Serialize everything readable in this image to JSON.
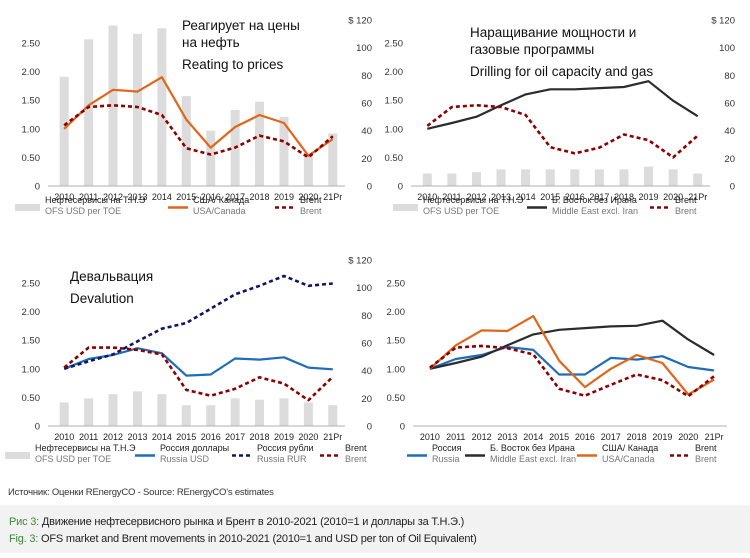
{
  "colors": {
    "bars": "#dcdcdc",
    "usa_canada": "#e0661a",
    "brent": "#8b0000",
    "middle_east": "#2b2b2b",
    "russia_usd": "#1f6cb8",
    "russia_rur": "#0f1560",
    "axis": "#b0b0b0",
    "caption_label": "#3a8a3a"
  },
  "chart_data": [
    {
      "type": "bar+line",
      "title": [
        "Реагирует на цены",
        "на нефть"
      ],
      "subtitle": "Reating to prices",
      "categories": [
        "2010",
        "2011",
        "2012",
        "2013",
        "2014",
        "2015",
        "2016",
        "2017",
        "2018",
        "2019",
        "2020",
        "21Pr"
      ],
      "left_axis": {
        "ticks": [
          "0",
          "0.50",
          "1.00",
          "1.50",
          "2.00",
          "2.50"
        ],
        "ylim": [
          0,
          2.9
        ]
      },
      "right_axis": {
        "ticks": [
          "0",
          "20",
          "40",
          "60",
          "80",
          "100",
          "$ 120"
        ],
        "ylim": [
          0,
          120
        ]
      },
      "bars": {
        "name": "Нефтесервисы на Т.Н.Э",
        "name_en": "OFS USD per TOE",
        "axis": "right",
        "values": [
          79,
          106,
          116,
          110,
          114,
          65,
          40,
          55,
          61,
          50,
          23,
          38
        ]
      },
      "series": [
        {
          "name": "США/ Канада",
          "name_en": "USA/Canada",
          "style": "solid",
          "color_key": "usa_canada",
          "values": [
            1.0,
            1.41,
            1.68,
            1.65,
            1.9,
            1.16,
            0.67,
            1.03,
            1.24,
            1.1,
            0.53,
            0.82
          ]
        },
        {
          "name": "Brent",
          "name_en": "Brent",
          "style": "dashed",
          "color_key": "brent",
          "values": [
            1.06,
            1.38,
            1.41,
            1.38,
            1.24,
            0.66,
            0.55,
            0.67,
            0.88,
            0.78,
            0.5,
            0.87
          ]
        }
      ],
      "legend": [
        {
          "kind": "bar",
          "label": "Нефтесервисы на Т.Н.Э",
          "sub": "OFS USD per TOE"
        },
        {
          "kind": "line",
          "color_key": "usa_canada",
          "label": "США/ Канада",
          "sub": "USA/Canada"
        },
        {
          "kind": "dash",
          "color_key": "brent",
          "label": "Brent",
          "sub": "Brent"
        }
      ]
    },
    {
      "type": "bar+line",
      "title": [
        "Наращивание мощности и",
        "газовые программы"
      ],
      "subtitle": "Drilling for oil capacity and gas",
      "categories": [
        "2010",
        "2011",
        "2012",
        "2013",
        "2014",
        "2015",
        "2016",
        "2017",
        "2018",
        "2019",
        "2020",
        "21Pr"
      ],
      "left_axis": {
        "ticks": [
          "0",
          "0.50",
          "1.00",
          "1.50",
          "2.00",
          "2.50"
        ],
        "ylim": [
          0,
          2.9
        ]
      },
      "right_axis": {
        "ticks": [
          "0",
          "20",
          "40",
          "60",
          "80",
          "100",
          "$ 120"
        ],
        "ylim": [
          0,
          120
        ]
      },
      "bars": {
        "name": "Нефтесервисы на Т.Н.Э",
        "name_en": "OFS USD per TOE",
        "axis": "right",
        "values": [
          9,
          9,
          10,
          12,
          12,
          12,
          12,
          12,
          12,
          14,
          12,
          9
        ]
      },
      "series": [
        {
          "name": "Б. Восток без Ирана",
          "name_en": "Middle East excl. Iran",
          "style": "solid",
          "color_key": "middle_east",
          "values": [
            1.0,
            1.1,
            1.21,
            1.41,
            1.6,
            1.69,
            1.69,
            1.71,
            1.73,
            1.83,
            1.49,
            1.22
          ]
        },
        {
          "name": "Brent",
          "name_en": "Brent",
          "style": "dashed",
          "color_key": "brent",
          "values": [
            1.05,
            1.38,
            1.41,
            1.38,
            1.24,
            0.68,
            0.57,
            0.67,
            0.9,
            0.8,
            0.5,
            0.88
          ]
        }
      ],
      "legend": [
        {
          "kind": "bar",
          "label": "Нефтесервисы на Т.Н.Э",
          "sub": "OFS USD per TOE"
        },
        {
          "kind": "line",
          "color_key": "middle_east",
          "label": "Б. Восток без Ирана",
          "sub": "Middle East excl. Iran"
        },
        {
          "kind": "dash",
          "color_key": "brent",
          "label": "Brent",
          "sub": "Brent"
        }
      ]
    },
    {
      "type": "bar+line",
      "title": [
        "Девальвация"
      ],
      "subtitle": "Devalution",
      "categories": [
        "2010",
        "2011",
        "2012",
        "2013",
        "2014",
        "2015",
        "2016",
        "2017",
        "2018",
        "2019",
        "2020",
        "21Pr"
      ],
      "left_axis": {
        "ticks": [
          "0",
          "0.50",
          "1.00",
          "1.50",
          "2.00",
          "2.50"
        ],
        "ylim": [
          0,
          2.9
        ]
      },
      "right_axis": {
        "ticks": [
          "0",
          "20",
          "40",
          "60",
          "80",
          "100",
          "$ 120"
        ],
        "ylim": [
          0,
          120
        ]
      },
      "bars": {
        "name": "Нефтесервисы на Т.Н.Э",
        "name_en": "OFS USD per TOE",
        "axis": "right",
        "values": [
          17,
          20,
          23,
          25,
          23,
          15,
          15,
          20,
          19,
          20,
          17,
          15
        ]
      },
      "series": [
        {
          "name": "Россия доллары",
          "name_en": "Russia USD",
          "style": "solid",
          "color_key": "russia_usd",
          "values": [
            1.0,
            1.17,
            1.24,
            1.36,
            1.27,
            0.88,
            0.9,
            1.18,
            1.16,
            1.2,
            1.02,
            0.99
          ]
        },
        {
          "name": "Россия рубли",
          "name_en": "Russia RUR",
          "style": "dashed",
          "color_key": "russia_rur",
          "values": [
            1.0,
            1.13,
            1.25,
            1.48,
            1.7,
            1.8,
            2.05,
            2.3,
            2.45,
            2.62,
            2.45,
            2.49
          ]
        },
        {
          "name": "Brent",
          "name_en": "Brent",
          "style": "dashed",
          "color_key": "brent",
          "values": [
            1.02,
            1.37,
            1.37,
            1.33,
            1.25,
            0.63,
            0.53,
            0.65,
            0.85,
            0.74,
            0.45,
            0.86
          ]
        }
      ],
      "legend": [
        {
          "kind": "bar",
          "label": "Нефтесервисы на Т.Н.Э",
          "sub": "OFS USD per TOE"
        },
        {
          "kind": "line",
          "color_key": "russia_usd",
          "label": "Россия доллары",
          "sub": "Russia USD"
        },
        {
          "kind": "dash",
          "color_key": "russia_rur",
          "label": "Россия рубли",
          "sub": "Russia RUR"
        },
        {
          "kind": "dash",
          "color_key": "brent",
          "label": "Brent",
          "sub": "Brent"
        }
      ]
    },
    {
      "type": "line",
      "title": [],
      "subtitle": "",
      "categories": [
        "2010",
        "2011",
        "2012",
        "2013",
        "2014",
        "2015",
        "2016",
        "2017",
        "2018",
        "2019",
        "2020",
        "21Pr"
      ],
      "left_axis": {
        "ticks": [
          "0",
          "0.50",
          "1.00",
          "1.50",
          "2.00",
          "2.50"
        ],
        "ylim": [
          0,
          2.9
        ]
      },
      "right_axis": null,
      "bars": null,
      "series": [
        {
          "name": "Россия",
          "name_en": "Russia",
          "style": "solid",
          "color_key": "russia_usd",
          "values": [
            1.0,
            1.17,
            1.24,
            1.38,
            1.33,
            0.9,
            0.9,
            1.19,
            1.16,
            1.22,
            1.03,
            0.97
          ]
        },
        {
          "name": "Б. Восток без Ирана",
          "name_en": "Middle East excl. Iran",
          "style": "solid",
          "color_key": "middle_east",
          "values": [
            1.0,
            1.1,
            1.21,
            1.41,
            1.6,
            1.68,
            1.71,
            1.74,
            1.75,
            1.84,
            1.51,
            1.24
          ]
        },
        {
          "name": "США/ Канада",
          "name_en": "USA/Canada",
          "style": "solid",
          "color_key": "usa_canada",
          "values": [
            1.0,
            1.41,
            1.67,
            1.66,
            1.92,
            1.14,
            0.68,
            1.0,
            1.24,
            1.1,
            0.55,
            0.81
          ]
        },
        {
          "name": "Brent",
          "name_en": "Brent",
          "style": "dashed",
          "color_key": "brent",
          "values": [
            1.02,
            1.37,
            1.4,
            1.36,
            1.25,
            0.65,
            0.53,
            0.72,
            0.9,
            0.8,
            0.52,
            0.87
          ]
        }
      ],
      "legend": [
        {
          "kind": "line",
          "color_key": "russia_usd",
          "label": "Россия",
          "sub": "Russia"
        },
        {
          "kind": "line",
          "color_key": "middle_east",
          "label": "Б. Восток без Ирана",
          "sub": "Middle East excl. Iran"
        },
        {
          "kind": "line",
          "color_key": "usa_canada",
          "label": "США/ Канада",
          "sub": "USA/Canada"
        },
        {
          "kind": "dash",
          "color_key": "brent",
          "label": "Brent",
          "sub": "Brent"
        }
      ]
    }
  ],
  "footer": {
    "source": "Источник: Оценки REnergyCO - Source: REnergyCO's estimates",
    "caption_ru_label": "Рис 3:",
    "caption_ru_text": " Движение нефтесервисного рынка и Брент в 2010-2021 (2010=1 и доллары за Т.Н.Э.)",
    "caption_en_label": "Fig. 3:",
    "caption_en_text": " OFS market and Brent movements in 2010-2021 (2010=1 and USD per ton of Oil Equivalent)"
  }
}
